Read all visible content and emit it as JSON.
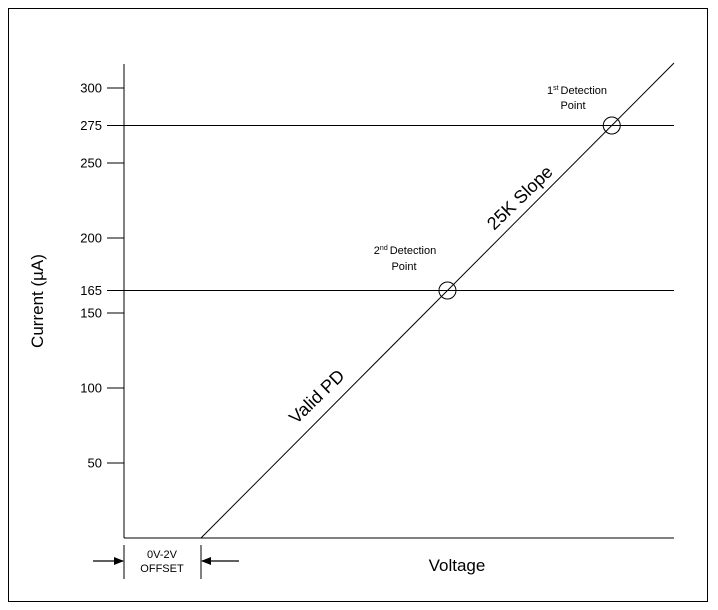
{
  "chart_data": {
    "type": "line",
    "title": "",
    "xlabel": "Voltage",
    "ylabel": "Current (µA)",
    "y_ticks": [
      300,
      275,
      250,
      200,
      165,
      150,
      100,
      50
    ],
    "ylim": [
      0,
      300
    ],
    "x_ticks": [],
    "grid": false,
    "series": [
      {
        "name": "25K Slope",
        "label_upper": "25K Slope",
        "label_lower": "Valid PD"
      }
    ],
    "reference_lines": [
      {
        "y": 275
      },
      {
        "y": 165
      }
    ],
    "detection_points": [
      {
        "label_base": "1",
        "label_sup": "st",
        "label_rest": "Detection",
        "label_line2": "Point",
        "y": 275
      },
      {
        "label_base": "2",
        "label_sup": "nd",
        "label_rest": "Detection",
        "label_line2": "Point",
        "y": 165
      }
    ],
    "offset": {
      "range": "0V-2V",
      "label": "OFFSET"
    }
  }
}
